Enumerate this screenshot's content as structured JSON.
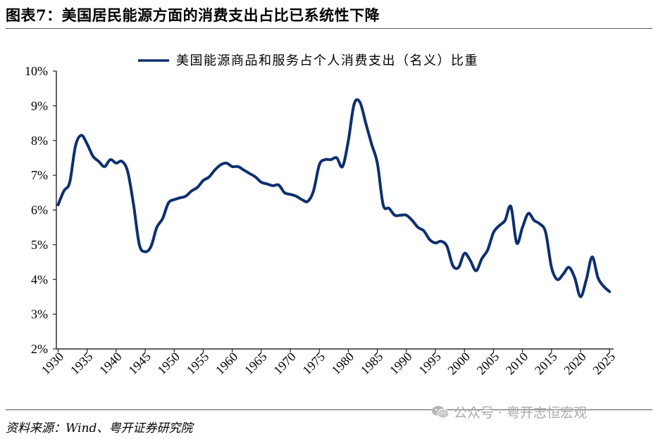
{
  "header": {
    "title": "图表7：美国居民能源方面的消费支出占比已系统性下降"
  },
  "footer": {
    "source": "资料来源：Wind、粤开证券研究院",
    "watermark": "公众号 · 粤开志恒宏观",
    "watermark_icon": "wechat-icon"
  },
  "chart_data": {
    "type": "line",
    "title": "",
    "xlabel": "",
    "ylabel": "",
    "xlim": [
      1930,
      2025
    ],
    "ylim": [
      2,
      10
    ],
    "x_ticks": [
      1930,
      1935,
      1940,
      1945,
      1950,
      1955,
      1960,
      1965,
      1970,
      1975,
      1980,
      1985,
      1990,
      1995,
      2000,
      2005,
      2010,
      2015,
      2020,
      2025
    ],
    "y_ticks": [
      "2%",
      "3%",
      "4%",
      "5%",
      "6%",
      "7%",
      "8%",
      "9%",
      "10%"
    ],
    "grid": false,
    "legend_position": "top-center",
    "series": [
      {
        "name": "美国能源商品和服务占个人消费支出（名义）比重",
        "color": "#0d2f6e",
        "x": [
          1930,
          1931,
          1932,
          1933,
          1934,
          1935,
          1936,
          1937,
          1938,
          1939,
          1940,
          1941,
          1942,
          1943,
          1944,
          1945,
          1946,
          1947,
          1948,
          1949,
          1950,
          1951,
          1952,
          1953,
          1954,
          1955,
          1956,
          1957,
          1958,
          1959,
          1960,
          1961,
          1962,
          1963,
          1964,
          1965,
          1966,
          1967,
          1968,
          1969,
          1970,
          1971,
          1972,
          1973,
          1974,
          1975,
          1976,
          1977,
          1978,
          1979,
          1980,
          1981,
          1982,
          1983,
          1984,
          1985,
          1986,
          1987,
          1988,
          1989,
          1990,
          1991,
          1992,
          1993,
          1994,
          1995,
          1996,
          1997,
          1998,
          1999,
          2000,
          2001,
          2002,
          2003,
          2004,
          2005,
          2006,
          2007,
          2008,
          2009,
          2010,
          2011,
          2012,
          2013,
          2014,
          2015,
          2016,
          2017,
          2018,
          2019,
          2020,
          2021,
          2022,
          2023,
          2024,
          2025
        ],
        "values": [
          6.15,
          6.55,
          6.8,
          7.85,
          8.15,
          7.9,
          7.55,
          7.4,
          7.25,
          7.45,
          7.35,
          7.4,
          7.1,
          6.15,
          5.0,
          4.8,
          4.95,
          5.5,
          5.75,
          6.2,
          6.3,
          6.35,
          6.4,
          6.55,
          6.65,
          6.85,
          6.95,
          7.15,
          7.3,
          7.35,
          7.25,
          7.25,
          7.15,
          7.05,
          6.95,
          6.8,
          6.75,
          6.7,
          6.72,
          6.5,
          6.45,
          6.4,
          6.3,
          6.25,
          6.55,
          7.3,
          7.45,
          7.45,
          7.5,
          7.25,
          8.0,
          9.05,
          9.1,
          8.5,
          7.9,
          7.35,
          6.15,
          6.05,
          5.85,
          5.85,
          5.85,
          5.7,
          5.5,
          5.4,
          5.15,
          5.05,
          5.1,
          4.95,
          4.4,
          4.35,
          4.75,
          4.55,
          4.25,
          4.6,
          4.85,
          5.35,
          5.55,
          5.7,
          6.1,
          5.05,
          5.5,
          5.9,
          5.7,
          5.6,
          5.35,
          4.35,
          4.0,
          4.15,
          4.35,
          4.05,
          3.5,
          4.0,
          4.65,
          4.05,
          3.8,
          3.65
        ]
      }
    ]
  }
}
